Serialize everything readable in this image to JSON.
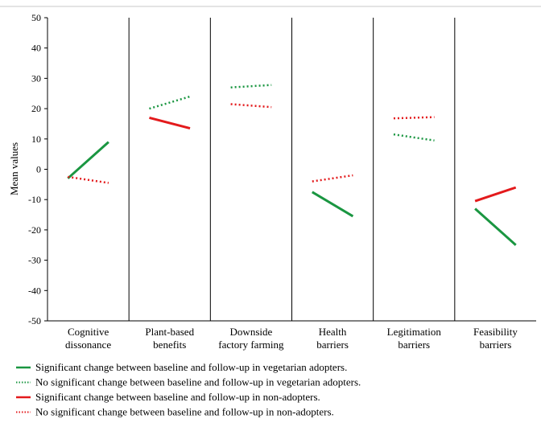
{
  "chart_data": {
    "type": "line",
    "ylabel": "Mean values",
    "xlabel": "",
    "title": "",
    "ylim": [
      -50,
      50
    ],
    "yticks": [
      50,
      40,
      30,
      20,
      10,
      0,
      -10,
      -20,
      -30,
      -40,
      -50
    ],
    "grid": false,
    "legend_position": "bottom",
    "categories": [
      {
        "lines": [
          "Cognitive",
          "dissonance"
        ]
      },
      {
        "lines": [
          "Plant-based",
          "benefits"
        ]
      },
      {
        "lines": [
          "Downside",
          "factory farming"
        ]
      },
      {
        "lines": [
          "Health",
          "barriers"
        ]
      },
      {
        "lines": [
          "Legitimation",
          "barriers"
        ]
      },
      {
        "lines": [
          "Feasibility",
          "barriers"
        ]
      }
    ],
    "x_points": [
      "baseline",
      "follow-up"
    ],
    "segments": [
      {
        "category": 0,
        "group": "vegetarian adopters",
        "significant": true,
        "values": [
          -3,
          9
        ]
      },
      {
        "category": 0,
        "group": "non-adopters",
        "significant": false,
        "values": [
          -2.5,
          -4.5
        ]
      },
      {
        "category": 1,
        "group": "vegetarian adopters",
        "significant": false,
        "values": [
          20,
          24
        ]
      },
      {
        "category": 1,
        "group": "non-adopters",
        "significant": true,
        "values": [
          17,
          13.5
        ]
      },
      {
        "category": 2,
        "group": "vegetarian adopters",
        "significant": false,
        "values": [
          27,
          27.8
        ]
      },
      {
        "category": 2,
        "group": "non-adopters",
        "significant": false,
        "values": [
          21.5,
          20.5
        ]
      },
      {
        "category": 3,
        "group": "vegetarian adopters",
        "significant": true,
        "values": [
          -7.5,
          -15.5
        ]
      },
      {
        "category": 3,
        "group": "non-adopters",
        "significant": false,
        "values": [
          -4,
          -2
        ]
      },
      {
        "category": 4,
        "group": "vegetarian adopters",
        "significant": false,
        "values": [
          11.5,
          9.5
        ]
      },
      {
        "category": 4,
        "group": "non-adopters",
        "significant": false,
        "values": [
          16.8,
          17.2
        ]
      },
      {
        "category": 5,
        "group": "vegetarian adopters",
        "significant": true,
        "values": [
          -13,
          -25
        ]
      },
      {
        "category": 5,
        "group": "non-adopters",
        "significant": true,
        "values": [
          -10.5,
          -6
        ]
      }
    ],
    "series_colors": {
      "vegetarian adopters": "#1a9641",
      "non-adopters": "#e31a1c"
    },
    "legend": [
      {
        "group": "vegetarian adopters",
        "significant": true,
        "label": "Significant change between baseline and follow-up in vegetarian adopters."
      },
      {
        "group": "vegetarian adopters",
        "significant": false,
        "label": "No significant change between baseline and follow-up in vegetarian adopters."
      },
      {
        "group": "non-adopters",
        "significant": true,
        "label": "Significant change between baseline and follow-up in non-adopters."
      },
      {
        "group": "non-adopters",
        "significant": false,
        "label": "No significant change between baseline and follow-up in non-adopters."
      }
    ]
  }
}
